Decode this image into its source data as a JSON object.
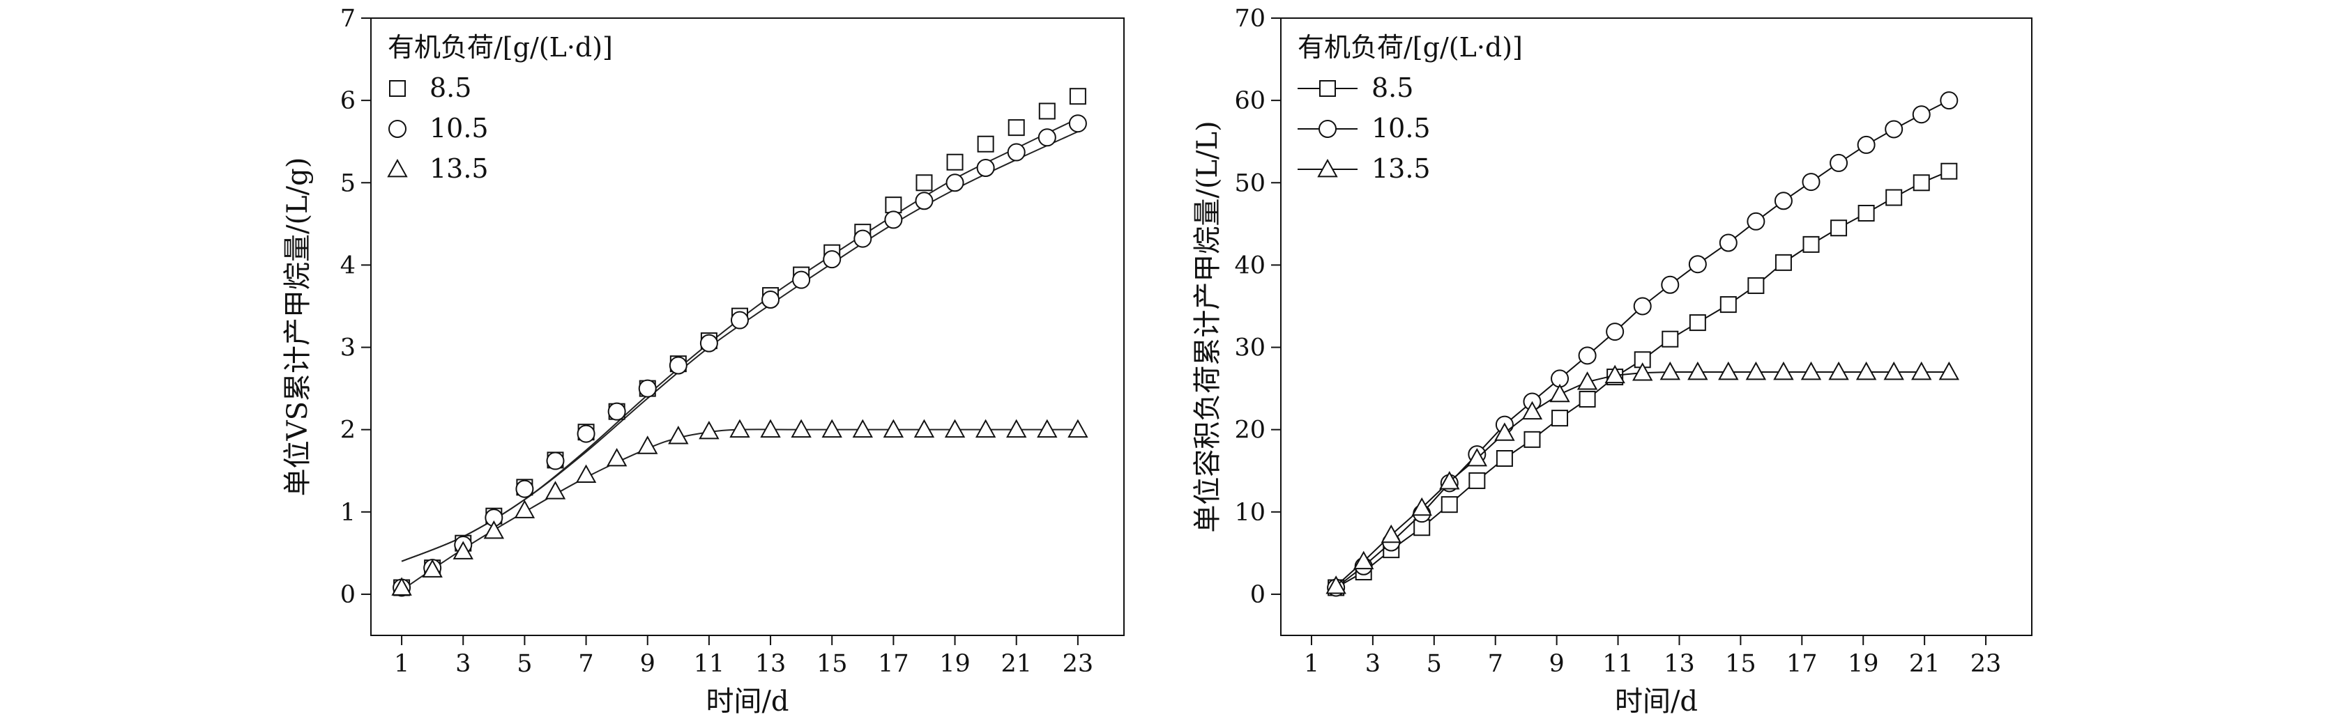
{
  "chart_data": [
    {
      "type": "scatter",
      "xlabel": "时间/d",
      "ylabel": "单位VS累计产甲烷量/(L/g)",
      "xlim": [
        0,
        24.5
      ],
      "ylim": [
        -0.5,
        7
      ],
      "xticks": [
        1,
        3,
        5,
        7,
        9,
        11,
        13,
        15,
        17,
        19,
        21,
        23
      ],
      "yticks": [
        0,
        1,
        2,
        3,
        4,
        5,
        6,
        7
      ],
      "legend_title": "有机负荷/[g/(L·d)]",
      "legend_position": "top-left",
      "grid": false,
      "series": [
        {
          "name": "8.5",
          "marker": "square",
          "x": [
            1,
            2,
            3,
            4,
            5,
            6,
            7,
            8,
            9,
            10,
            11,
            12,
            13,
            14,
            15,
            16,
            17,
            18,
            19,
            20,
            21,
            22,
            23
          ],
          "y": [
            0.08,
            0.32,
            0.62,
            0.95,
            1.3,
            1.63,
            1.97,
            2.22,
            2.5,
            2.8,
            3.08,
            3.38,
            3.63,
            3.88,
            4.15,
            4.4,
            4.73,
            5.0,
            5.25,
            5.47,
            5.67,
            5.87,
            6.05
          ]
        },
        {
          "name": "10.5",
          "marker": "circle",
          "x": [
            1,
            2,
            3,
            4,
            5,
            6,
            7,
            8,
            9,
            10,
            11,
            12,
            13,
            14,
            15,
            16,
            17,
            18,
            19,
            20,
            21,
            22,
            23
          ],
          "y": [
            0.08,
            0.32,
            0.6,
            0.93,
            1.28,
            1.62,
            1.95,
            2.22,
            2.5,
            2.78,
            3.05,
            3.33,
            3.58,
            3.82,
            4.07,
            4.32,
            4.55,
            4.78,
            5.0,
            5.18,
            5.37,
            5.55,
            5.72
          ]
        },
        {
          "name": "13.5",
          "marker": "triangle",
          "x": [
            1,
            2,
            3,
            4,
            5,
            6,
            7,
            8,
            9,
            10,
            11,
            12,
            13,
            14,
            15,
            16,
            17,
            18,
            19,
            20,
            21,
            22,
            23
          ],
          "y": [
            0.08,
            0.3,
            0.52,
            0.77,
            1.02,
            1.25,
            1.45,
            1.65,
            1.8,
            1.92,
            1.98,
            2.0,
            2.0,
            2.0,
            2.0,
            2.0,
            2.0,
            2.0,
            2.0,
            2.0,
            2.0,
            2.0,
            2.0
          ]
        }
      ],
      "fitted_curves": [
        {
          "series": "8.5",
          "x": [
            1,
            3,
            5,
            7,
            9,
            11,
            13,
            15,
            17,
            19,
            21,
            23
          ],
          "y": [
            0.4,
            0.7,
            1.15,
            1.75,
            2.42,
            3.05,
            3.62,
            4.12,
            4.6,
            5.05,
            5.42,
            5.78
          ]
        },
        {
          "series": "10.5",
          "x": [
            1,
            3,
            5,
            7,
            9,
            11,
            13,
            15,
            17,
            19,
            21,
            23
          ],
          "y": [
            0.4,
            0.7,
            1.15,
            1.73,
            2.38,
            3.0,
            3.52,
            4.02,
            4.5,
            4.92,
            5.28,
            5.62
          ]
        },
        {
          "series": "13.5",
          "x": [
            1,
            3,
            5,
            7,
            9,
            10,
            11,
            12,
            14,
            17,
            20,
            23
          ],
          "y": [
            0.05,
            0.55,
            1.0,
            1.42,
            1.77,
            1.9,
            1.97,
            2.0,
            2.0,
            2.0,
            2.0,
            2.0
          ]
        }
      ]
    },
    {
      "type": "line",
      "xlabel": "时间/d",
      "ylabel": "单位容积负荷累计产甲烷量/(L/L)",
      "xlim": [
        0,
        24.5
      ],
      "ylim": [
        -5,
        70
      ],
      "xticks": [
        1,
        3,
        5,
        7,
        9,
        11,
        13,
        15,
        17,
        19,
        21,
        23
      ],
      "yticks": [
        0,
        10,
        20,
        30,
        40,
        50,
        60,
        70
      ],
      "legend_title": "有机负荷/[g/(L·d)]",
      "legend_position": "top-left",
      "grid": false,
      "series": [
        {
          "name": "8.5",
          "marker": "square",
          "x": [
            1.8,
            2.7,
            3.6,
            4.6,
            5.5,
            6.4,
            7.3,
            8.2,
            9.1,
            10.0,
            10.9,
            11.8,
            12.7,
            13.6,
            14.6,
            15.5,
            16.4,
            17.3,
            18.2,
            19.1,
            20.0,
            20.9,
            21.8
          ],
          "y": [
            0.8,
            2.7,
            5.4,
            8.1,
            10.9,
            13.8,
            16.5,
            18.8,
            21.4,
            23.7,
            26.4,
            28.5,
            31.0,
            33.0,
            35.2,
            37.5,
            40.3,
            42.5,
            44.5,
            46.3,
            48.2,
            50.0,
            51.4
          ]
        },
        {
          "name": "10.5",
          "marker": "circle",
          "x": [
            1.8,
            2.7,
            3.6,
            4.6,
            5.5,
            6.4,
            7.3,
            8.2,
            9.1,
            10.0,
            10.9,
            11.8,
            12.7,
            13.6,
            14.6,
            15.5,
            16.4,
            17.3,
            18.2,
            19.1,
            20.0,
            20.9,
            21.8
          ],
          "y": [
            0.8,
            3.4,
            6.3,
            9.8,
            13.5,
            17.0,
            20.6,
            23.4,
            26.2,
            29.0,
            31.9,
            35.0,
            37.6,
            40.1,
            42.7,
            45.3,
            47.8,
            50.1,
            52.4,
            54.6,
            56.5,
            58.3,
            60.0
          ]
        },
        {
          "name": "13.5",
          "marker": "triangle",
          "x": [
            1.8,
            2.7,
            3.6,
            4.6,
            5.5,
            6.4,
            7.3,
            8.2,
            9.1,
            10.0,
            10.9,
            11.8,
            12.7,
            13.6,
            14.6,
            15.5,
            16.4,
            17.3,
            18.2,
            19.1,
            20.0,
            20.9,
            21.8
          ],
          "y": [
            1.0,
            4.0,
            7.2,
            10.5,
            13.7,
            16.5,
            19.6,
            22.2,
            24.3,
            25.8,
            26.6,
            26.9,
            27.0,
            27.0,
            27.0,
            27.0,
            27.0,
            27.0,
            27.0,
            27.0,
            27.0,
            27.0,
            27.0
          ]
        }
      ]
    }
  ]
}
